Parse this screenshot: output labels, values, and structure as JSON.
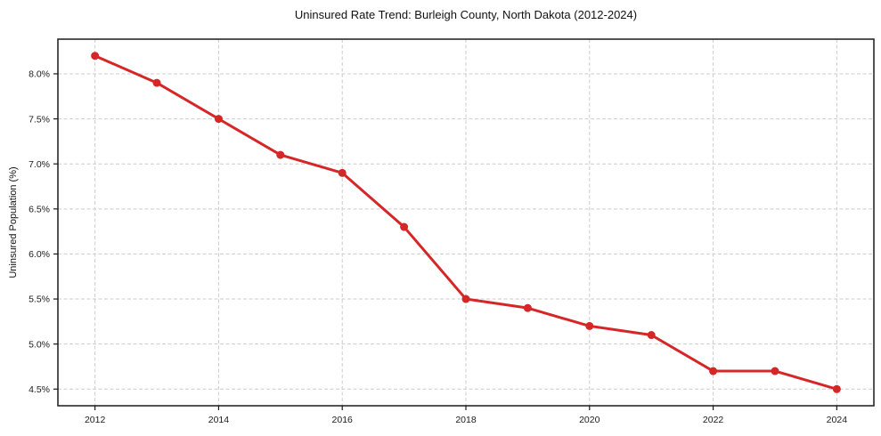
{
  "title": "Uninsured Rate Trend: Burleigh County, North Dakota (2012-2024)",
  "chart_data": {
    "type": "line",
    "title": "Uninsured Rate Trend: Burleigh County, North Dakota (2012-2024)",
    "xlabel": "",
    "ylabel": "Uninsured Population (%)",
    "series": [
      {
        "name": "Uninsured Rate",
        "x": [
          2012,
          2013,
          2014,
          2015,
          2016,
          2017,
          2018,
          2019,
          2020,
          2021,
          2022,
          2023,
          2024
        ],
        "values": [
          8.2,
          7.9,
          7.5,
          7.1,
          6.9,
          6.3,
          5.5,
          5.4,
          5.2,
          5.1,
          4.7,
          4.7,
          4.5
        ]
      }
    ],
    "xlim": [
      2011.4,
      2024.6
    ],
    "ylim": [
      4.315,
      8.385
    ],
    "xtick_values": [
      2012,
      2014,
      2016,
      2018,
      2020,
      2022,
      2024
    ],
    "xtick_labels": [
      "2012",
      "2014",
      "2016",
      "2018",
      "2020",
      "2022",
      "2024"
    ],
    "ytick_values": [
      4.5,
      5.0,
      5.5,
      6.0,
      6.5,
      7.0,
      7.5,
      8.0
    ],
    "ytick_labels": [
      "4.5%",
      "5.0%",
      "5.5%",
      "6.0%",
      "6.5%",
      "7.0%",
      "7.5%",
      "8.0%"
    ],
    "grid": true,
    "grid_style": "dashed",
    "legend_position": "none",
    "marker": "circle",
    "line_width": 3,
    "marker_radius": 4.5,
    "colors": {
      "line": "#d62728",
      "grid": "#cccccc",
      "spine": "#1a1a1a",
      "tick_label": "#1a1a1a",
      "background": "#ffffff"
    }
  }
}
